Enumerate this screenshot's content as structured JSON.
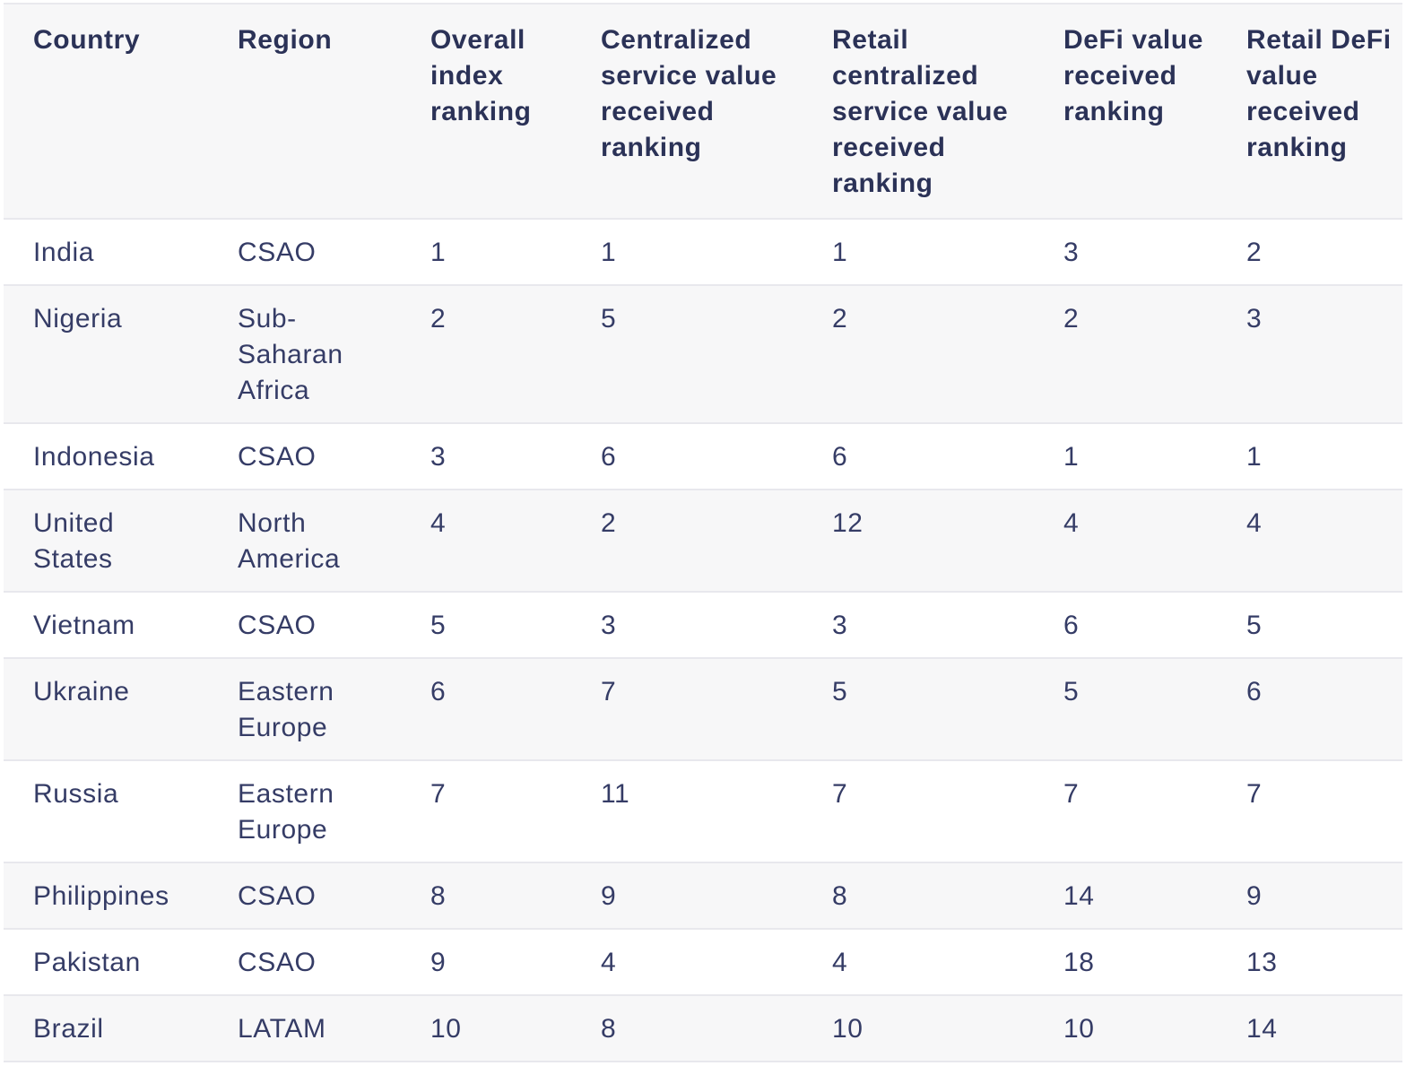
{
  "table": {
    "headers": [
      "Country",
      "Region",
      "Overall index ranking",
      "Centralized service value received ranking",
      "Retail centralized service value received ranking",
      "DeFi value received ranking",
      "Retail DeFi value received ranking"
    ],
    "rows": [
      [
        "India",
        "CSAO",
        "1",
        "1",
        "1",
        "3",
        "2"
      ],
      [
        "Nigeria",
        "Sub-Saharan Africa",
        "2",
        "5",
        "2",
        "2",
        "3"
      ],
      [
        "Indonesia",
        "CSAO",
        "3",
        "6",
        "6",
        "1",
        "1"
      ],
      [
        "United States",
        "North America",
        "4",
        "2",
        "12",
        "4",
        "4"
      ],
      [
        "Vietnam",
        "CSAO",
        "5",
        "3",
        "3",
        "6",
        "5"
      ],
      [
        "Ukraine",
        "Eastern Europe",
        "6",
        "7",
        "5",
        "5",
        "6"
      ],
      [
        "Russia",
        "Eastern Europe",
        "7",
        "11",
        "7",
        "7",
        "7"
      ],
      [
        "Philippines",
        "CSAO",
        "8",
        "9",
        "8",
        "14",
        "9"
      ],
      [
        "Pakistan",
        "CSAO",
        "9",
        "4",
        "4",
        "18",
        "13"
      ],
      [
        "Brazil",
        "LATAM",
        "10",
        "8",
        "10",
        "10",
        "14"
      ]
    ]
  }
}
